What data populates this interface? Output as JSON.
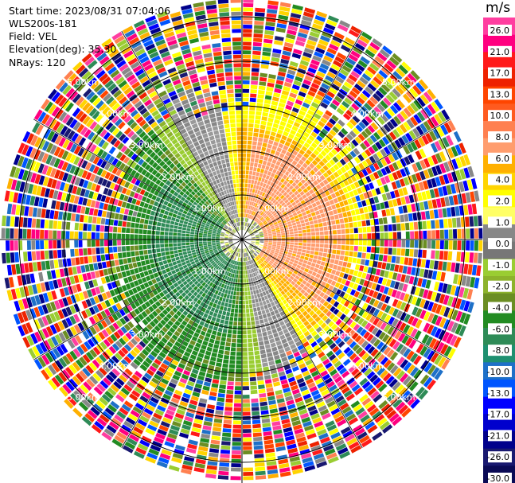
{
  "header": {
    "start_time": "Start time: 2023/08/31 07:04:06",
    "instrument": "WLS200s-181",
    "field": "Field: VEL",
    "elevation": "Elevation(deg): 35.30",
    "nrays": "NRays: 120"
  },
  "chart_data": {
    "type": "heatmap",
    "projection": "polar-ppi",
    "field": "VEL",
    "units": "m/s",
    "n_rays": 120,
    "range_rings_km": [
      1,
      2,
      3,
      4,
      5
    ],
    "ring_labels": [
      "1.00km",
      "2.00km",
      "3.00km",
      "4.00km",
      "5.00km"
    ],
    "colorbar": {
      "title": "m/s",
      "ticks": [
        "26.0",
        "21.0",
        "17.0",
        "13.0",
        "10.0",
        "8.0",
        "6.0",
        "4.0",
        "2.0",
        "1.0",
        "0.0",
        "-1.0",
        "-2.0",
        "-4.0",
        "-6.0",
        "-8.0",
        "-10.0",
        "-13.0",
        "-17.0",
        "-21.0",
        "-26.0",
        "-30.0"
      ],
      "colors": [
        "#ff3ea0",
        "#ff0080",
        "#ff1a1a",
        "#ee2200",
        "#ff4500",
        "#ff5a1f",
        "#ff8050",
        "#ff9d6e",
        "#ffb000",
        "#ffd400",
        "#ffff00",
        "#ffff66",
        "#888888",
        "#777777",
        "#9acd32",
        "#8db32c",
        "#6b8e23",
        "#228b22",
        "#2e8b57",
        "#1e9070",
        "#1e70c8",
        "#0055ff",
        "#0000ff",
        "#0000cd",
        "#00008b",
        "#191970",
        "#0a0a55"
      ]
    },
    "pattern_description_values": {
      "inner_core_velocity": "-1.0 to 1.0",
      "northeast_sector": "6.0 to 8.0",
      "southwest_sector": "-6.0 to -8.0"
    }
  }
}
